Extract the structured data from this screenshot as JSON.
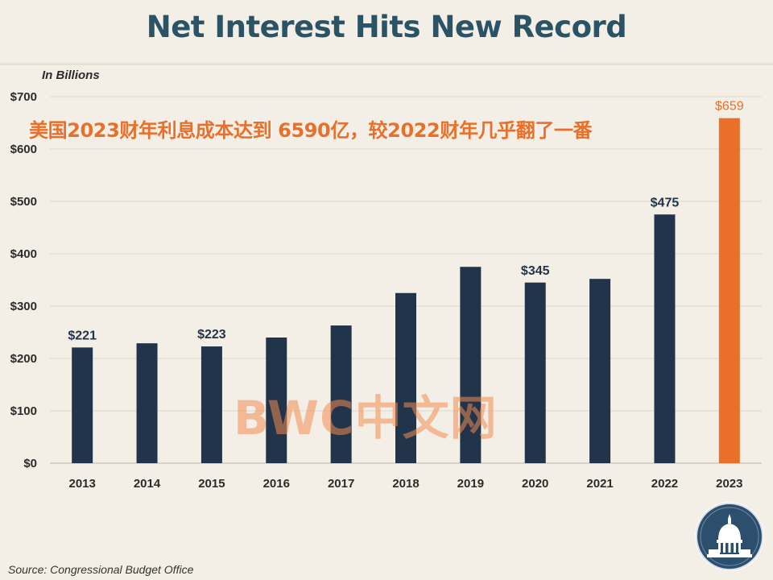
{
  "header": {
    "title": "Net Interest Hits New Record",
    "subtitle": "美国2023财年利息成本达到 6590亿，较2022财年几乎翻了一番",
    "unit_label": "In Billions"
  },
  "footer": {
    "source": "Source: Congressional  Budget Office"
  },
  "watermark": "BWC中文网",
  "chart_data": {
    "type": "bar",
    "title": "Net Interest Hits New Record",
    "ylabel": "In Billions",
    "categories": [
      "2013",
      "2014",
      "2015",
      "2016",
      "2017",
      "2018",
      "2019",
      "2020",
      "2021",
      "2022",
      "2023"
    ],
    "values": [
      221,
      229,
      223,
      240,
      263,
      325,
      375,
      345,
      352,
      475,
      659
    ],
    "data_labels": [
      {
        "category": "2013",
        "text": "$221"
      },
      {
        "category": "2015",
        "text": "$223"
      },
      {
        "category": "2020",
        "text": "$345"
      },
      {
        "category": "2022",
        "text": "$475"
      },
      {
        "category": "2023",
        "text": "$659"
      }
    ],
    "ylim": [
      0,
      700
    ],
    "yticks": [
      0,
      100,
      200,
      300,
      400,
      500,
      600,
      700
    ],
    "ytick_labels": [
      "$0",
      "$100",
      "$200",
      "$300",
      "$400",
      "$500",
      "$600",
      "$700"
    ],
    "grid": true,
    "colors": {
      "default_bar": "#22344a",
      "highlight_bar": "#e8702a",
      "highlight_category": "2023",
      "default_label": "#22344a",
      "highlight_label": "#e8702a"
    }
  }
}
